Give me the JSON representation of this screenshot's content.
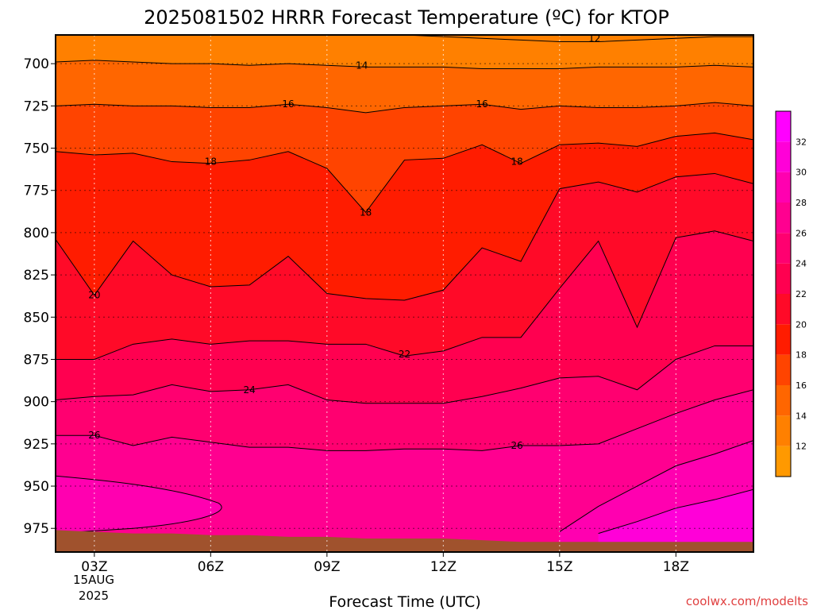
{
  "chart_data": {
    "type": "contour",
    "title": "2025081502 HRRR Forecast Temperature (ºC) for KTOP",
    "xlabel": "Forecast Time (UTC)",
    "ylabel": "",
    "credit": "coolwx.com/modelts",
    "x_ticks": [
      "03Z",
      "06Z",
      "09Z",
      "12Z",
      "15Z",
      "18Z"
    ],
    "x_tick_values": [
      3,
      6,
      9,
      12,
      15,
      18
    ],
    "date_labels": [
      "15AUG",
      "2025"
    ],
    "xlim": [
      2,
      20
    ],
    "y_ticks": [
      700,
      725,
      750,
      775,
      800,
      825,
      850,
      875,
      900,
      925,
      950,
      975
    ],
    "ylim": [
      683,
      989
    ],
    "y_axis_inverted": true,
    "grid": true,
    "colorbar": {
      "levels": [
        10,
        12,
        14,
        16,
        18,
        20,
        22,
        24,
        26,
        28,
        30,
        32,
        34
      ],
      "labels": [
        "12",
        "14",
        "16",
        "18",
        "20",
        "22",
        "24",
        "26",
        "28",
        "30",
        "32"
      ],
      "colors": [
        "#ff9900",
        "#ff8000",
        "#ff6600",
        "#ff4400",
        "#ff1c00",
        "#ff0a28",
        "#ff0050",
        "#ff0070",
        "#ff0090",
        "#ff00b0",
        "#ff00d8",
        "#ff00ff"
      ],
      "placement": "right"
    },
    "hours": [
      2,
      3,
      4,
      5,
      6,
      7,
      8,
      9,
      10,
      11,
      12,
      13,
      14,
      15,
      16,
      17,
      18,
      19,
      20
    ],
    "contours": [
      {
        "value": 12,
        "pressure": [
          null,
          null,
          null,
          null,
          null,
          null,
          null,
          null,
          null,
          683,
          684,
          685,
          686,
          687,
          687,
          686,
          685,
          684,
          684
        ]
      },
      {
        "value": 14,
        "pressure": [
          699,
          698,
          699,
          700,
          700,
          701,
          700,
          701,
          702,
          702,
          702,
          703,
          703,
          703,
          702,
          702,
          702,
          701,
          702
        ]
      },
      {
        "value": 16,
        "pressure": [
          725,
          724,
          725,
          725,
          726,
          726,
          724,
          726,
          729,
          726,
          725,
          724,
          727,
          725,
          726,
          726,
          725,
          723,
          725
        ]
      },
      {
        "value": 18,
        "pressure": [
          752,
          754,
          753,
          758,
          759,
          757,
          752,
          762,
          788,
          757,
          756,
          748,
          759,
          748,
          747,
          749,
          743,
          741,
          745
        ]
      },
      {
        "value": 20,
        "pressure": [
          804,
          837,
          805,
          825,
          832,
          831,
          814,
          836,
          839,
          840,
          834,
          809,
          817,
          774,
          770,
          776,
          767,
          765,
          771
        ]
      },
      {
        "value": 22,
        "pressure": [
          875,
          875,
          866,
          863,
          866,
          864,
          864,
          866,
          866,
          873,
          870,
          862,
          862,
          833,
          805,
          856,
          803,
          799,
          805
        ]
      },
      {
        "value": 24,
        "pressure": [
          899,
          897,
          896,
          890,
          894,
          893,
          890,
          899,
          901,
          901,
          901,
          897,
          892,
          886,
          885,
          893,
          875,
          867,
          867
        ]
      },
      {
        "value": 26,
        "pressure": [
          920,
          920,
          926,
          921,
          924,
          927,
          927,
          929,
          929,
          928,
          928,
          929,
          926,
          926,
          925,
          916,
          907,
          899,
          893
        ]
      },
      {
        "value": 28,
        "pressure": [
          null,
          null,
          null,
          null,
          null,
          null,
          null,
          null,
          null,
          null,
          null,
          null,
          null,
          977,
          962,
          950,
          938,
          931,
          923
        ]
      },
      {
        "value": 30,
        "pressure": [
          null,
          null,
          null,
          null,
          null,
          null,
          null,
          null,
          null,
          null,
          null,
          null,
          null,
          null,
          978,
          971,
          963,
          958,
          952
        ]
      }
    ],
    "contour_labels": [
      {
        "text": "12",
        "x": 15.9,
        "p": 685
      },
      {
        "text": "14",
        "x": 9.9,
        "p": 701
      },
      {
        "text": "16",
        "x": 8.0,
        "p": 724
      },
      {
        "text": "16",
        "x": 13.0,
        "p": 724
      },
      {
        "text": "18",
        "x": 6.0,
        "p": 758
      },
      {
        "text": "18",
        "x": 10.0,
        "p": 788
      },
      {
        "text": "18",
        "x": 13.9,
        "p": 758
      },
      {
        "text": "20",
        "x": 3.0,
        "p": 837
      },
      {
        "text": "22",
        "x": 11.0,
        "p": 872
      },
      {
        "text": "24",
        "x": 7.0,
        "p": 893
      },
      {
        "text": "26",
        "x": 3.0,
        "p": 920
      },
      {
        "text": "26",
        "x": 13.9,
        "p": 926
      }
    ]
  }
}
